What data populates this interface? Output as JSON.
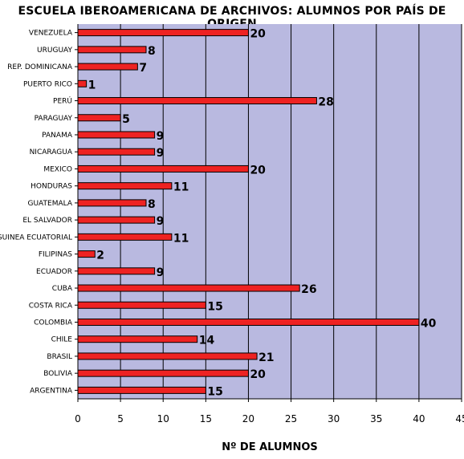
{
  "chart_data": {
    "type": "bar",
    "orientation": "horizontal",
    "title": "ESCUELA IBEROAMERICANA DE ARCHIVOS: ALUMNOS POR PAÍS DE ORIGEN",
    "xlabel": "Nº DE ALUMNOS",
    "ylabel": "",
    "categories": [
      "VENEZUELA",
      "URUGUAY",
      "REP. DOMINICANA",
      "PUERTO RICO",
      "PERÚ",
      "PARAGUAY",
      "PANAMA",
      "NICARAGUA",
      "MEXICO",
      "HONDURAS",
      "GUATEMALA",
      "EL SALVADOR",
      "GUINEA ECUATORIAL",
      "FILIPINAS",
      "ECUADOR",
      "CUBA",
      "COSTA RICA",
      "COLOMBIA",
      "CHILE",
      "BRASIL",
      "BOLIVIA",
      "ARGENTINA"
    ],
    "values": [
      20,
      8,
      7,
      1,
      28,
      5,
      9,
      9,
      20,
      11,
      8,
      9,
      11,
      2,
      9,
      26,
      15,
      40,
      14,
      21,
      20,
      15
    ],
    "xlim": [
      0,
      45
    ],
    "xticks": [
      0,
      5,
      10,
      15,
      20,
      25,
      30,
      35,
      40,
      45
    ],
    "grid": "vertical",
    "colors": {
      "bar": "#ee2222",
      "plot_bg": "#b9b9e0",
      "grid": "#000000"
    }
  }
}
